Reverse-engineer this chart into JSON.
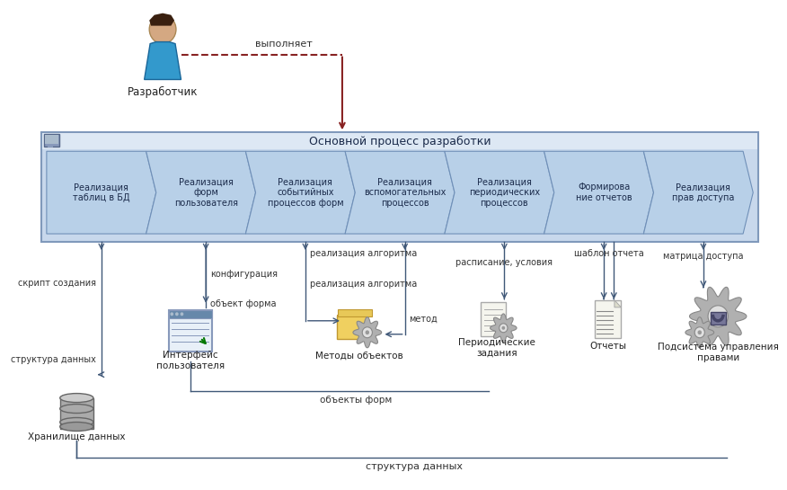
{
  "title": "Основной процесс разработки",
  "developer_label": "Разработчик",
  "arrow_label": "выполняет",
  "swim_lane_bg": "#cddaec",
  "swim_lane_border": "#8099bb",
  "arrow_fill": "#b8d0e8",
  "arrow_border": "#7090b8",
  "arrow_fill_dark": "#9ab8d8",
  "process_steps": [
    "Реализация\nтаблиц в БД",
    "Реализация\nформ\nпользователя",
    "Реализация\nсобытийных\nпроцессов форм",
    "Реализация\nвспомогательных\nпроцессов",
    "Реализация\nпериодических\nпроцессов",
    "Формирова\nние отчетов",
    "Реализация\nправ доступа"
  ],
  "background_color": "#ffffff",
  "ann_color": "#405878",
  "annotations": {
    "script": "скрипт создания",
    "config": "конфигурация",
    "algo1": "реализация алгоритма",
    "algo2": "реализация алгоритма",
    "obj_form": "объект форма",
    "method": "метод",
    "schedule": "расписание, условия",
    "template": "шаблон отчета",
    "matrix": "матрица доступа",
    "struct1": "структура данных",
    "obj_forms": "объекты форм",
    "struct2": "структура данных"
  },
  "icon_labels": {
    "db": "Хранилище данных",
    "ui": "Интерфейс\nпользователя",
    "methods": "Методы объектов",
    "periodic": "Периодические\nзадания",
    "reports": "Отчеты",
    "rights": "Подсистема управления\nправами"
  }
}
